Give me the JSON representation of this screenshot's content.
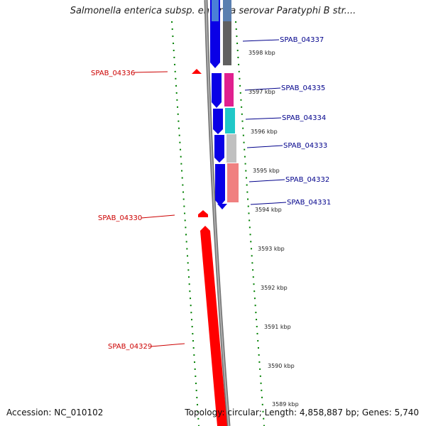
{
  "title": "Salmonella enterica subsp. enterica serovar Paratyphi B str....",
  "footer": {
    "accession": "Accession: NC_010102",
    "topology": "Topology: circular; Length: 4,858,887 bp; Genes: 5,740"
  },
  "colors": {
    "forward_gene": "#0a00e6",
    "reverse_gene": "#ff0000",
    "backbone": "#808080",
    "ticks": "#008000",
    "forward_label": "#00008b",
    "reverse_label": "#cc0000"
  },
  "genes": {
    "forward": [
      "SPAB_04337",
      "SPAB_04335",
      "SPAB_04334",
      "SPAB_04333",
      "SPAB_04332",
      "SPAB_04331"
    ],
    "reverse": [
      "SPAB_04336",
      "SPAB_04330",
      "SPAB_04329"
    ]
  },
  "ticks": [
    "3598 kbp",
    "3597 kbp",
    "3596 kbp",
    "3595 kbp",
    "3594 kbp",
    "3593 kbp",
    "3592 kbp",
    "3591 kbp",
    "3590 kbp",
    "3589 kbp"
  ]
}
